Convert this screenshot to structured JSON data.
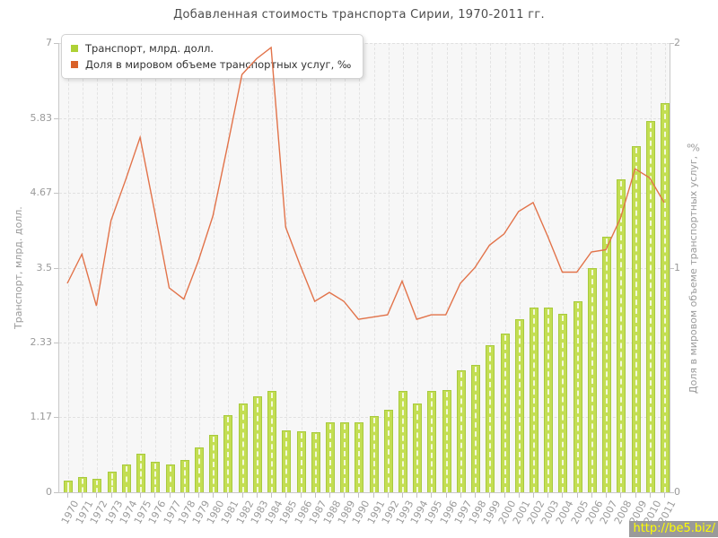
{
  "title": "Добавленная стоимость транспорта Сирии, 1970-2011 гг.",
  "watermark": "http://be5.biz/",
  "legend": {
    "items": [
      {
        "label": "Транспорт, млрд. долл.",
        "color": "#aed136"
      },
      {
        "label": "Доля в мировом объеме транспортных услуг, ‰",
        "color": "#d96129"
      }
    ]
  },
  "chart_data": {
    "type": "bar+line",
    "title": "Добавленная стоимость транспорта Сирии, 1970-2011 гг.",
    "categories": [
      "1970",
      "1971",
      "1972",
      "1973",
      "1974",
      "1975",
      "1976",
      "1977",
      "1978",
      "1979",
      "1980",
      "1981",
      "1982",
      "1983",
      "1984",
      "1985",
      "1986",
      "1987",
      "1988",
      "1989",
      "1990",
      "1991",
      "1992",
      "1993",
      "1994",
      "1995",
      "1996",
      "1997",
      "1998",
      "1999",
      "2000",
      "2001",
      "2002",
      "2003",
      "2004",
      "2005",
      "2006",
      "2007",
      "2008",
      "2009",
      "2010",
      "2011"
    ],
    "series": [
      {
        "name": "Транспорт, млрд. долл.",
        "type": "bar",
        "axis": "left",
        "color": "#c3de52",
        "border_color": "#a8ca3e",
        "values": [
          0.18,
          0.24,
          0.21,
          0.32,
          0.43,
          0.6,
          0.48,
          0.43,
          0.5,
          0.7,
          0.9,
          1.2,
          1.38,
          1.49,
          1.58,
          0.97,
          0.95,
          0.93,
          1.09,
          1.09,
          1.09,
          1.19,
          1.29,
          1.58,
          1.38,
          1.58,
          1.59,
          1.9,
          1.98,
          2.29,
          2.48,
          2.69,
          2.88,
          2.88,
          2.78,
          2.98,
          3.49,
          3.98,
          4.88,
          5.39,
          5.78,
          6.07
        ]
      },
      {
        "name": "Доля в мировом объеме транспортных услуг, ‰",
        "type": "line",
        "axis": "right",
        "color": "#e2734a",
        "values": [
          0.93,
          1.06,
          0.83,
          1.21,
          1.39,
          1.58,
          1.25,
          0.91,
          0.86,
          1.03,
          1.23,
          1.54,
          1.86,
          1.93,
          1.98,
          1.18,
          1.01,
          0.85,
          0.89,
          0.85,
          0.77,
          0.78,
          0.79,
          0.94,
          0.77,
          0.79,
          0.79,
          0.93,
          1.0,
          1.1,
          1.15,
          1.25,
          1.29,
          1.14,
          0.98,
          0.98,
          1.07,
          1.08,
          1.22,
          1.44,
          1.4,
          1.29
        ]
      }
    ],
    "left_axis": {
      "label": "Транспорт, млрд. долл.",
      "ticks": [
        "0",
        "1.17",
        "2.33",
        "3.5",
        "4.67",
        "5.83",
        "7"
      ],
      "range": [
        0,
        7
      ]
    },
    "right_axis": {
      "label": "Доля в мировом объеме транспортных услуг, ‰",
      "ticks": [
        "0",
        "1",
        "2"
      ],
      "range": [
        0,
        2
      ]
    },
    "grid": true,
    "legend_position": "top-left"
  }
}
